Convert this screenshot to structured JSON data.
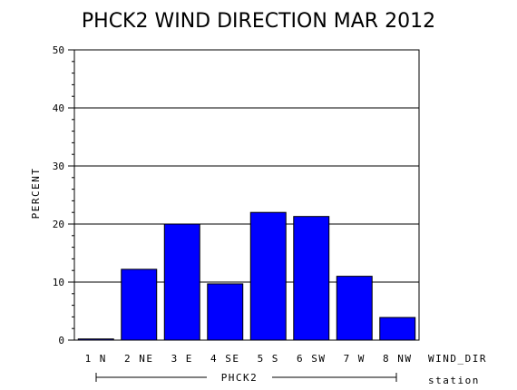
{
  "chart_data": {
    "type": "bar",
    "title": "PHCK2 WIND DIRECTION MAR 2012",
    "ylabel": "PERCENT",
    "xlabel": "WIND_DIR",
    "group_label": "PHCK2",
    "group_axis_label": "station",
    "categories": [
      "1 N",
      "2 NE",
      "3 E",
      "4 SE",
      "5 S",
      "6 SW",
      "7 W",
      "8 NW"
    ],
    "values": [
      0.2,
      12.2,
      20.0,
      9.7,
      22.0,
      21.3,
      11.0,
      3.9
    ],
    "ylim": [
      0,
      50
    ],
    "yticks": [
      "0",
      "10",
      "20",
      "30",
      "40",
      "50"
    ],
    "grid": true,
    "bar_color": "#0000ff"
  }
}
